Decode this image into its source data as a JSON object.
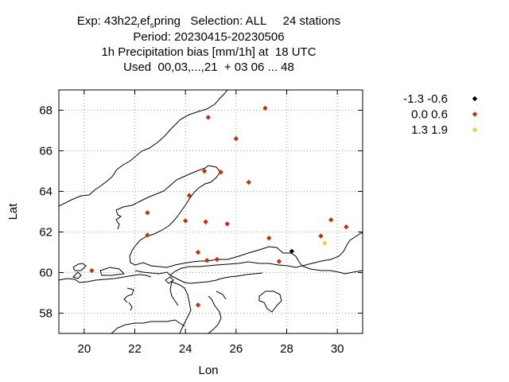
{
  "title": {
    "line1_prefix": "Exp: 43h22",
    "line1_sub1": "r",
    "line1_mid": "ef",
    "line1_sub2": "s",
    "line1_suffix": "pring   Selection: ALL     24 stations",
    "line2": "Period: 20230415-20230506",
    "line3": "1h Precipitation bias [mm/1h] at  18 UTC",
    "line4": "Used  00,03,...,21  + 03 06 ... 48"
  },
  "chart_data": {
    "type": "scatter",
    "xlabel": "Lon",
    "ylabel": "Lat",
    "xlim": [
      19,
      31
    ],
    "ylim": [
      57,
      69
    ],
    "xticks": [
      20,
      22,
      24,
      26,
      28,
      30
    ],
    "yticks": [
      58,
      60,
      62,
      64,
      66,
      68
    ],
    "grid": true,
    "legend_position": "top-right",
    "series": [
      {
        "name": "-1.3 -0.6",
        "color": "#000000",
        "points": [
          [
            28.2,
            61.05
          ]
        ]
      },
      {
        "name": "0.0 0.6",
        "color": "#d42a00",
        "points": [
          [
            27.15,
            68.1
          ],
          [
            24.9,
            67.65
          ],
          [
            26.0,
            66.6
          ],
          [
            24.75,
            65.0
          ],
          [
            25.4,
            64.95
          ],
          [
            26.5,
            64.45
          ],
          [
            24.15,
            63.8
          ],
          [
            22.5,
            62.95
          ],
          [
            24.0,
            62.55
          ],
          [
            24.8,
            62.5
          ],
          [
            25.65,
            62.4
          ],
          [
            29.75,
            62.6
          ],
          [
            30.35,
            62.25
          ],
          [
            22.5,
            61.85
          ],
          [
            27.3,
            61.7
          ],
          [
            29.35,
            61.8
          ],
          [
            24.5,
            61.0
          ],
          [
            24.85,
            60.6
          ],
          [
            25.25,
            60.65
          ],
          [
            27.7,
            60.55
          ],
          [
            20.3,
            60.1
          ],
          [
            24.5,
            58.4
          ]
        ]
      },
      {
        "name": "1.3 1.9",
        "color": "#f2d030",
        "points": [
          [
            29.5,
            61.45
          ]
        ]
      }
    ]
  }
}
